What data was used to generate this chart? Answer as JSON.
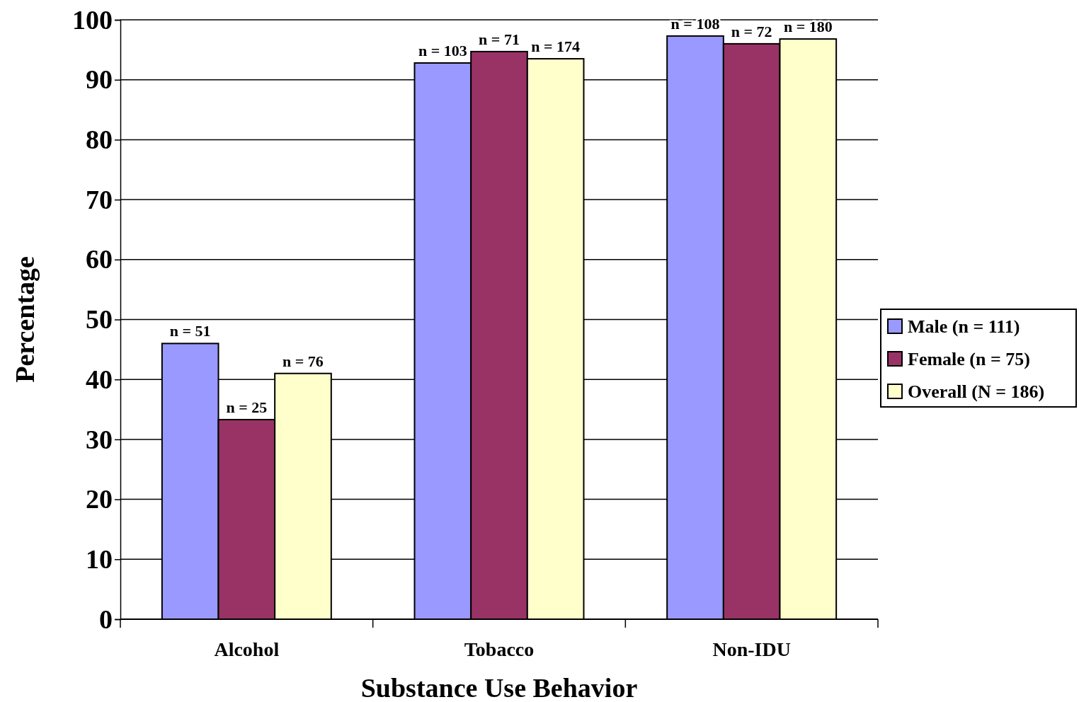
{
  "chart_data": {
    "type": "bar",
    "xlabel": "Substance Use Behavior",
    "ylabel": "Percentage",
    "categories": [
      "Alcohol",
      "Tobacco",
      "Non-IDU"
    ],
    "series": [
      {
        "name": "Male (n = 111)",
        "color": "#9999ff",
        "values": [
          46,
          92.8,
          97.3
        ]
      },
      {
        "name": "Female (n = 75)",
        "color": "#993366",
        "values": [
          33.3,
          94.7,
          96
        ]
      },
      {
        "name": "Overall (N = 186)",
        "color": "#ffffcc",
        "values": [
          41,
          93.5,
          96.8
        ]
      }
    ],
    "annotations": [
      "n = 51",
      "n = 25",
      "n = 76",
      "n = 103",
      "n = 71",
      "n = 174",
      "n = 108",
      "n = 72",
      "n = 180"
    ],
    "ylim": [
      0,
      100
    ],
    "yticks": [
      0,
      10,
      20,
      30,
      40,
      50,
      60,
      70,
      80,
      90,
      100
    ],
    "grid": "y",
    "legend": "right"
  }
}
